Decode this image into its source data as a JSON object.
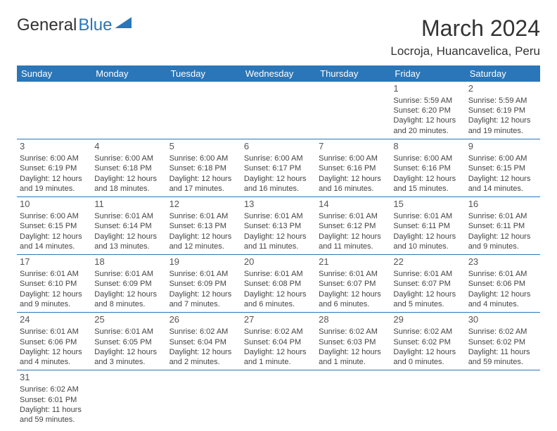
{
  "brand": {
    "part1": "General",
    "part2": "Blue"
  },
  "title": "March 2024",
  "location": "Locroja, Huancavelica, Peru",
  "colors": {
    "accent": "#2a76b8",
    "text": "#333333",
    "bg": "#ffffff"
  },
  "dayHeaders": [
    "Sunday",
    "Monday",
    "Tuesday",
    "Wednesday",
    "Thursday",
    "Friday",
    "Saturday"
  ],
  "weeks": [
    [
      null,
      null,
      null,
      null,
      null,
      {
        "n": "1",
        "r": "Sunrise: 5:59 AM",
        "s": "Sunset: 6:20 PM",
        "d1": "Daylight: 12 hours",
        "d2": "and 20 minutes."
      },
      {
        "n": "2",
        "r": "Sunrise: 5:59 AM",
        "s": "Sunset: 6:19 PM",
        "d1": "Daylight: 12 hours",
        "d2": "and 19 minutes."
      }
    ],
    [
      {
        "n": "3",
        "r": "Sunrise: 6:00 AM",
        "s": "Sunset: 6:19 PM",
        "d1": "Daylight: 12 hours",
        "d2": "and 19 minutes."
      },
      {
        "n": "4",
        "r": "Sunrise: 6:00 AM",
        "s": "Sunset: 6:18 PM",
        "d1": "Daylight: 12 hours",
        "d2": "and 18 minutes."
      },
      {
        "n": "5",
        "r": "Sunrise: 6:00 AM",
        "s": "Sunset: 6:18 PM",
        "d1": "Daylight: 12 hours",
        "d2": "and 17 minutes."
      },
      {
        "n": "6",
        "r": "Sunrise: 6:00 AM",
        "s": "Sunset: 6:17 PM",
        "d1": "Daylight: 12 hours",
        "d2": "and 16 minutes."
      },
      {
        "n": "7",
        "r": "Sunrise: 6:00 AM",
        "s": "Sunset: 6:16 PM",
        "d1": "Daylight: 12 hours",
        "d2": "and 16 minutes."
      },
      {
        "n": "8",
        "r": "Sunrise: 6:00 AM",
        "s": "Sunset: 6:16 PM",
        "d1": "Daylight: 12 hours",
        "d2": "and 15 minutes."
      },
      {
        "n": "9",
        "r": "Sunrise: 6:00 AM",
        "s": "Sunset: 6:15 PM",
        "d1": "Daylight: 12 hours",
        "d2": "and 14 minutes."
      }
    ],
    [
      {
        "n": "10",
        "r": "Sunrise: 6:00 AM",
        "s": "Sunset: 6:15 PM",
        "d1": "Daylight: 12 hours",
        "d2": "and 14 minutes."
      },
      {
        "n": "11",
        "r": "Sunrise: 6:01 AM",
        "s": "Sunset: 6:14 PM",
        "d1": "Daylight: 12 hours",
        "d2": "and 13 minutes."
      },
      {
        "n": "12",
        "r": "Sunrise: 6:01 AM",
        "s": "Sunset: 6:13 PM",
        "d1": "Daylight: 12 hours",
        "d2": "and 12 minutes."
      },
      {
        "n": "13",
        "r": "Sunrise: 6:01 AM",
        "s": "Sunset: 6:13 PM",
        "d1": "Daylight: 12 hours",
        "d2": "and 11 minutes."
      },
      {
        "n": "14",
        "r": "Sunrise: 6:01 AM",
        "s": "Sunset: 6:12 PM",
        "d1": "Daylight: 12 hours",
        "d2": "and 11 minutes."
      },
      {
        "n": "15",
        "r": "Sunrise: 6:01 AM",
        "s": "Sunset: 6:11 PM",
        "d1": "Daylight: 12 hours",
        "d2": "and 10 minutes."
      },
      {
        "n": "16",
        "r": "Sunrise: 6:01 AM",
        "s": "Sunset: 6:11 PM",
        "d1": "Daylight: 12 hours",
        "d2": "and 9 minutes."
      }
    ],
    [
      {
        "n": "17",
        "r": "Sunrise: 6:01 AM",
        "s": "Sunset: 6:10 PM",
        "d1": "Daylight: 12 hours",
        "d2": "and 9 minutes."
      },
      {
        "n": "18",
        "r": "Sunrise: 6:01 AM",
        "s": "Sunset: 6:09 PM",
        "d1": "Daylight: 12 hours",
        "d2": "and 8 minutes."
      },
      {
        "n": "19",
        "r": "Sunrise: 6:01 AM",
        "s": "Sunset: 6:09 PM",
        "d1": "Daylight: 12 hours",
        "d2": "and 7 minutes."
      },
      {
        "n": "20",
        "r": "Sunrise: 6:01 AM",
        "s": "Sunset: 6:08 PM",
        "d1": "Daylight: 12 hours",
        "d2": "and 6 minutes."
      },
      {
        "n": "21",
        "r": "Sunrise: 6:01 AM",
        "s": "Sunset: 6:07 PM",
        "d1": "Daylight: 12 hours",
        "d2": "and 6 minutes."
      },
      {
        "n": "22",
        "r": "Sunrise: 6:01 AM",
        "s": "Sunset: 6:07 PM",
        "d1": "Daylight: 12 hours",
        "d2": "and 5 minutes."
      },
      {
        "n": "23",
        "r": "Sunrise: 6:01 AM",
        "s": "Sunset: 6:06 PM",
        "d1": "Daylight: 12 hours",
        "d2": "and 4 minutes."
      }
    ],
    [
      {
        "n": "24",
        "r": "Sunrise: 6:01 AM",
        "s": "Sunset: 6:06 PM",
        "d1": "Daylight: 12 hours",
        "d2": "and 4 minutes."
      },
      {
        "n": "25",
        "r": "Sunrise: 6:01 AM",
        "s": "Sunset: 6:05 PM",
        "d1": "Daylight: 12 hours",
        "d2": "and 3 minutes."
      },
      {
        "n": "26",
        "r": "Sunrise: 6:02 AM",
        "s": "Sunset: 6:04 PM",
        "d1": "Daylight: 12 hours",
        "d2": "and 2 minutes."
      },
      {
        "n": "27",
        "r": "Sunrise: 6:02 AM",
        "s": "Sunset: 6:04 PM",
        "d1": "Daylight: 12 hours",
        "d2": "and 1 minute."
      },
      {
        "n": "28",
        "r": "Sunrise: 6:02 AM",
        "s": "Sunset: 6:03 PM",
        "d1": "Daylight: 12 hours",
        "d2": "and 1 minute."
      },
      {
        "n": "29",
        "r": "Sunrise: 6:02 AM",
        "s": "Sunset: 6:02 PM",
        "d1": "Daylight: 12 hours",
        "d2": "and 0 minutes."
      },
      {
        "n": "30",
        "r": "Sunrise: 6:02 AM",
        "s": "Sunset: 6:02 PM",
        "d1": "Daylight: 11 hours",
        "d2": "and 59 minutes."
      }
    ],
    [
      {
        "n": "31",
        "r": "Sunrise: 6:02 AM",
        "s": "Sunset: 6:01 PM",
        "d1": "Daylight: 11 hours",
        "d2": "and 59 minutes."
      },
      null,
      null,
      null,
      null,
      null,
      null
    ]
  ]
}
